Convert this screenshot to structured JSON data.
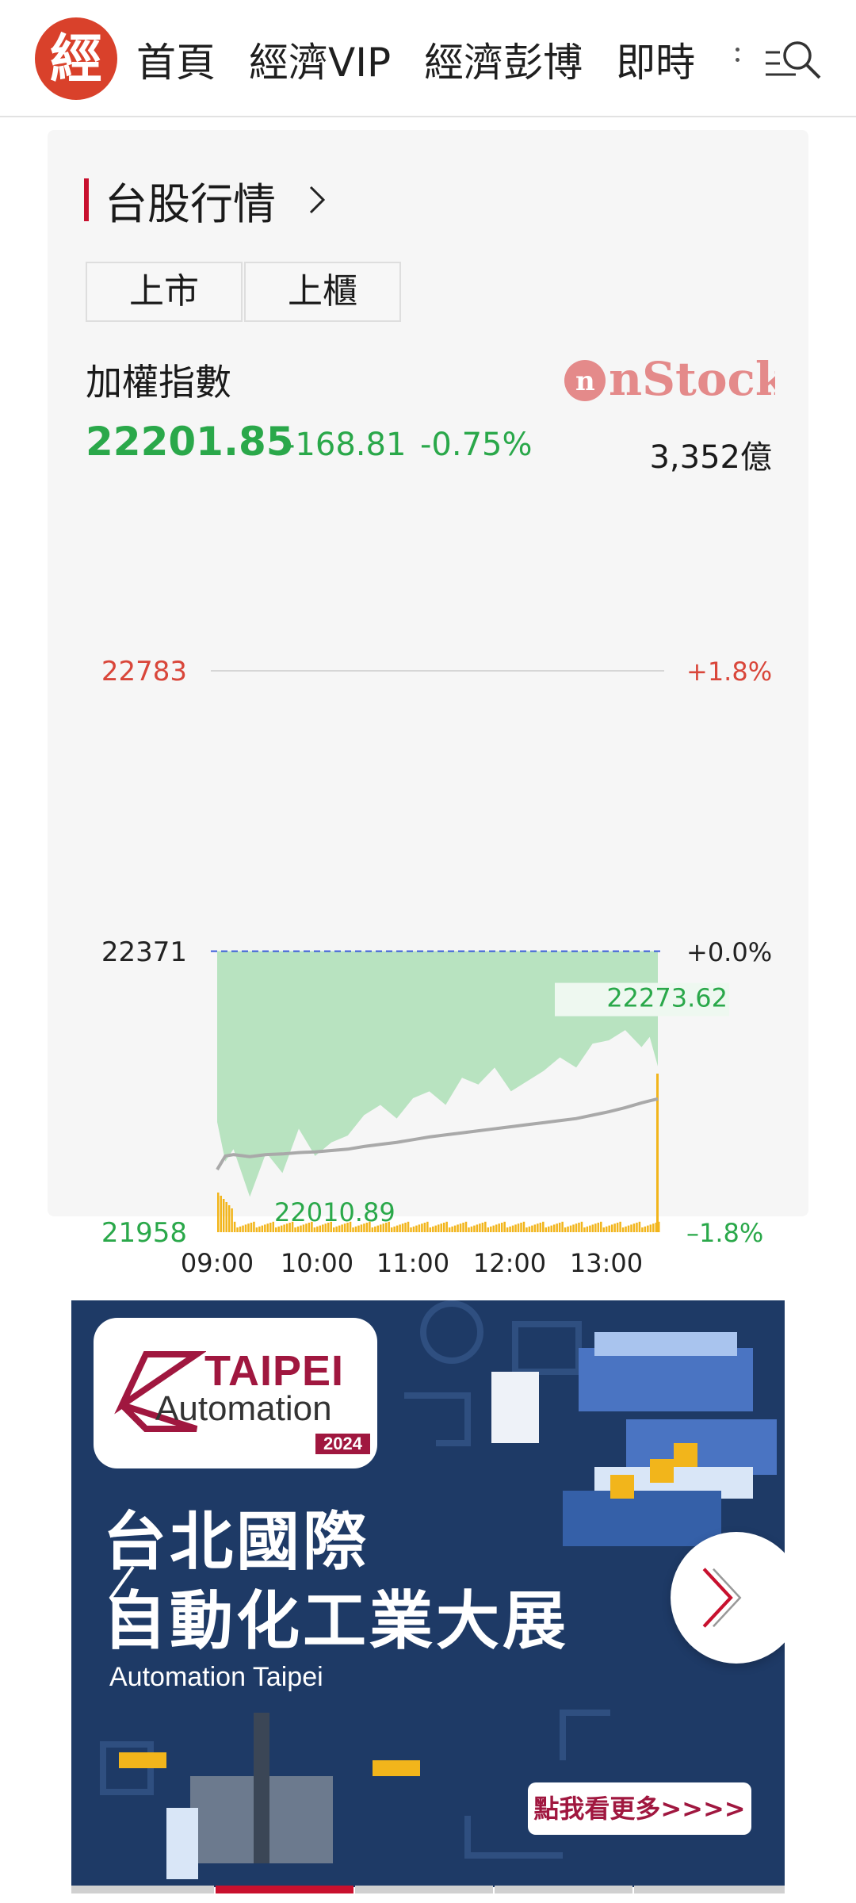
{
  "header": {
    "logo_text": "經",
    "nav": [
      "首頁",
      "經濟VIP",
      "經濟彭博",
      "即時"
    ],
    "icons": [
      "more-dots-icon",
      "search-menu-icon"
    ]
  },
  "stock_card": {
    "section_title": "台股行情",
    "tabs": [
      "上市",
      "上櫃"
    ],
    "index_name": "加權指數",
    "brand": "nStock",
    "index_value": "22201.85",
    "change": "-168.81",
    "change_pct": "-0.75%",
    "volume": "3,352億",
    "colors": {
      "up": "#d9463a",
      "down": "#2aa84a",
      "area": "#b8e3c0",
      "volume": "#f2b51b",
      "avg": "#a9a9a9",
      "ref": "#3a5bd9"
    }
  },
  "chart_data": {
    "type": "area",
    "y_high_label": "22783",
    "y_ref_label": "22371",
    "y_low_label": "21958",
    "pct_high_label": "+1.8%",
    "pct_ref_label": "+0.0%",
    "pct_low_label": "–1.8%",
    "ylim": [
      21958,
      22783
    ],
    "reference": 22371,
    "x_ticks": [
      "09:00",
      "10:00",
      "11:00",
      "12:00",
      "13:00"
    ],
    "annotations": {
      "high": "22273.62",
      "low": "22010.89"
    },
    "x": [
      "09:00",
      "09:05",
      "09:10",
      "09:20",
      "09:30",
      "09:40",
      "09:50",
      "10:00",
      "10:10",
      "10:20",
      "10:30",
      "10:40",
      "10:50",
      "11:00",
      "11:10",
      "11:20",
      "11:30",
      "11:40",
      "11:50",
      "12:00",
      "12:10",
      "12:20",
      "12:30",
      "12:40",
      "12:50",
      "13:00",
      "13:10",
      "13:20",
      "13:25",
      "13:30"
    ],
    "series": [
      {
        "values": [
          22120,
          22062,
          22080,
          22010,
          22075,
          22045,
          22110,
          22070,
          22090,
          22100,
          22130,
          22145,
          22125,
          22155,
          22165,
          22145,
          22185,
          22175,
          22200,
          22165,
          22180,
          22195,
          22215,
          22200,
          22235,
          22240,
          22255,
          22230,
          22245,
          22201.85
        ]
      },
      {
        "values": [
          22050,
          22070,
          22072,
          22069,
          22072,
          22073,
          22075,
          22076,
          22078,
          22080,
          22084,
          22087,
          22090,
          22094,
          22098,
          22101,
          22104,
          22107,
          22110,
          22113,
          22116,
          22119,
          22122,
          22125,
          22130,
          22135,
          22141,
          22148,
          22151,
          22154
        ]
      }
    ]
  },
  "ad": {
    "logo_taipei": "TAIPEI",
    "logo_automation": "Automation",
    "logo_year": "2024",
    "title_line1": "台北國際",
    "title_line2": "自動化工業大展",
    "subtitle": "Automation Taipei",
    "cta": "點我看更多>>>>"
  }
}
